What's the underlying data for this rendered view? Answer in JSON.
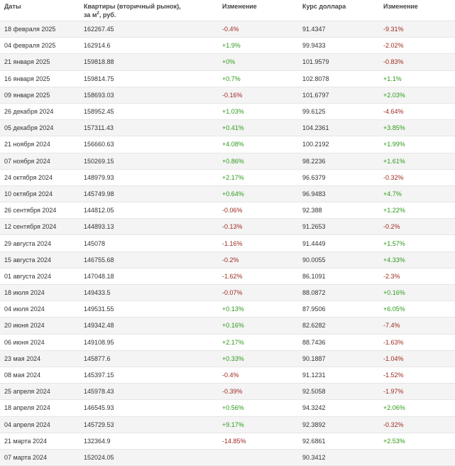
{
  "headers": {
    "date": "Даты",
    "flats_line1": "Квартиры (вторичный рынок),",
    "flats_line2": "за м",
    "flats_sup": "2",
    "flats_line3": ", руб.",
    "change1": "Изменение",
    "usd": "Курс доллара",
    "change2": "Изменение"
  },
  "colors": {
    "up": "#2e9a1a",
    "down": "#9c2a1f"
  },
  "rows": [
    {
      "date": "18 февраля 2025",
      "price": "162267.45",
      "change": "-0.4%",
      "usd": "91.4347",
      "usd_change": "-9.31%"
    },
    {
      "date": "04 февраля 2025",
      "price": "162914.6",
      "change": "+1.9%",
      "usd": "99.9433",
      "usd_change": "-2.02%"
    },
    {
      "date": "21 января 2025",
      "price": "159818.88",
      "change": "+0%",
      "usd": "101.9579",
      "usd_change": "-0.83%"
    },
    {
      "date": "16 января 2025",
      "price": "159814.75",
      "change": "+0.7%",
      "usd": "102.8078",
      "usd_change": "+1.1%"
    },
    {
      "date": "09 января 2025",
      "price": "158693.03",
      "change": "-0.16%",
      "usd": "101.6797",
      "usd_change": "+2.03%"
    },
    {
      "date": "26 декабря 2024",
      "price": "158952.45",
      "change": "+1.03%",
      "usd": "99.6125",
      "usd_change": "-4.64%"
    },
    {
      "date": "05 декабря 2024",
      "price": "157311.43",
      "change": "+0.41%",
      "usd": "104.2361",
      "usd_change": "+3.85%"
    },
    {
      "date": "21 ноября 2024",
      "price": "156660.63",
      "change": "+4.08%",
      "usd": "100.2192",
      "usd_change": "+1.99%"
    },
    {
      "date": "07 ноября 2024",
      "price": "150269.15",
      "change": "+0.86%",
      "usd": "98.2236",
      "usd_change": "+1.61%"
    },
    {
      "date": "24 октября 2024",
      "price": "148979.93",
      "change": "+2.17%",
      "usd": "96.6379",
      "usd_change": "-0.32%"
    },
    {
      "date": "10 октября 2024",
      "price": "145749.98",
      "change": "+0.64%",
      "usd": "96.9483",
      "usd_change": "+4.7%"
    },
    {
      "date": "26 сентября 2024",
      "price": "144812.05",
      "change": "-0.06%",
      "usd": "92.388",
      "usd_change": "+1.22%"
    },
    {
      "date": "12 сентября 2024",
      "price": "144893.13",
      "change": "-0.13%",
      "usd": "91.2653",
      "usd_change": "-0.2%"
    },
    {
      "date": "29 августа 2024",
      "price": "145078",
      "change": "-1.16%",
      "usd": "91.4449",
      "usd_change": "+1.57%"
    },
    {
      "date": "15 августа 2024",
      "price": "146755.68",
      "change": "-0.2%",
      "usd": "90.0055",
      "usd_change": "+4.33%"
    },
    {
      "date": "01 августа 2024",
      "price": "147048.18",
      "change": "-1.62%",
      "usd": "86.1091",
      "usd_change": "-2.3%"
    },
    {
      "date": "18 июля 2024",
      "price": "149433.5",
      "change": "-0.07%",
      "usd": "88.0872",
      "usd_change": "+0.16%"
    },
    {
      "date": "04 июля 2024",
      "price": "149531.55",
      "change": "+0.13%",
      "usd": "87.9506",
      "usd_change": "+6.05%"
    },
    {
      "date": "20 июня 2024",
      "price": "149342.48",
      "change": "+0.16%",
      "usd": "82.6282",
      "usd_change": "-7.4%"
    },
    {
      "date": "06 июня 2024",
      "price": "149108.95",
      "change": "+2.17%",
      "usd": "88.7436",
      "usd_change": "-1.63%"
    },
    {
      "date": "23 мая 2024",
      "price": "145877.6",
      "change": "+0.33%",
      "usd": "90.1887",
      "usd_change": "-1.04%"
    },
    {
      "date": "08 мая 2024",
      "price": "145397.15",
      "change": "-0.4%",
      "usd": "91.1231",
      "usd_change": "-1.52%"
    },
    {
      "date": "25 апреля 2024",
      "price": "145978.43",
      "change": "-0.39%",
      "usd": "92.5058",
      "usd_change": "-1.97%"
    },
    {
      "date": "18 апреля 2024",
      "price": "146545.93",
      "change": "+0.56%",
      "usd": "94.3242",
      "usd_change": "+2.06%"
    },
    {
      "date": "04 апреля 2024",
      "price": "145729.53",
      "change": "+9.17%",
      "usd": "92.3892",
      "usd_change": "-0.32%"
    },
    {
      "date": "21 марта 2024",
      "price": "132364.9",
      "change": "-14.85%",
      "usd": "92.6861",
      "usd_change": "+2.53%"
    },
    {
      "date": "07 марта 2024",
      "price": "152024.05",
      "change": "",
      "usd": "90.3412",
      "usd_change": ""
    }
  ]
}
